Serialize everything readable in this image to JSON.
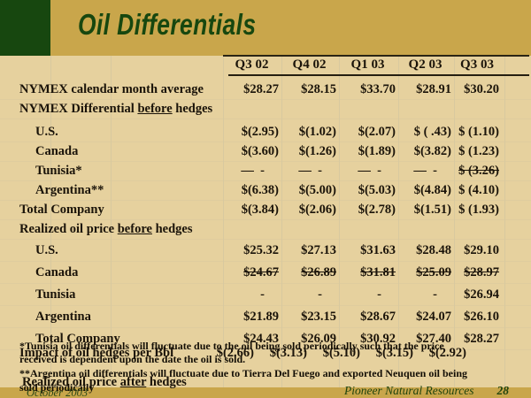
{
  "title": "Oil Differentials",
  "colors": {
    "gold": "#C9A64B",
    "dark_green": "#17470F",
    "table_background": "#E6D19E",
    "text": "#1A1309"
  },
  "table": {
    "columns": [
      "Q3 02",
      "Q4 02",
      "Q1 03",
      "Q2 03",
      "Q3 03"
    ],
    "rows": [
      {
        "label": "NYMEX calendar month average",
        "style": "plain",
        "values": [
          "$28.27",
          "$28.15",
          "$33.70",
          "$28.91",
          "$30.20"
        ]
      },
      {
        "parts": {
          "pre": "NYMEX Differential ",
          "u": "before",
          "post": " hedges"
        },
        "style": "section"
      },
      {
        "label": "U.S.",
        "style": "indent gap",
        "values": [
          "$(2.95)",
          "$(1.02)",
          "$(2.07)",
          "$ ( .43)",
          "$ (1.10)"
        ]
      },
      {
        "label": "Canada",
        "style": "indent",
        "values": [
          "$(3.60)",
          "$(1.26)",
          "$(1.89)",
          "$(3.82)",
          "$ (1.23)"
        ]
      },
      {
        "label": "Tunisia*",
        "style": "indent",
        "strike_last": true,
        "values": [
          "—  -",
          "—  -",
          "—  -",
          "—  -",
          "$ (3.26)"
        ]
      },
      {
        "label": "Argentina**",
        "style": "indent",
        "values": [
          "$(6.38)",
          "$(5.00)",
          "$(5.03)",
          "$(4.84)",
          "$ (4.10)"
        ]
      },
      {
        "label": "Total Company",
        "style": "plain",
        "values": [
          "$(3.84)",
          "$(2.06)",
          "$(2.78)",
          "$(1.51)",
          "$ (1.93)"
        ]
      },
      {
        "parts": {
          "pre": "Realized oil price ",
          "u": "before",
          "post": " hedges"
        },
        "style": "section"
      },
      {
        "label": "U.S.",
        "style": "indent tall",
        "values": [
          "$25.32",
          "$27.13",
          "$31.63",
          "$28.48",
          "$29.10"
        ]
      },
      {
        "label": "Canada",
        "style": "indent tall",
        "strike": true,
        "values": [
          "$24.67",
          "$26.89",
          "$31.81",
          "$25.09",
          "$28.97"
        ]
      },
      {
        "label": "Tunisia",
        "style": "indent tall",
        "values": [
          "-",
          "-",
          "-",
          "-",
          "$26.94"
        ]
      },
      {
        "label": "Argentina",
        "style": "indent tall",
        "values": [
          "$21.89",
          "$23.15",
          "$28.67",
          "$24.07",
          "$26.10"
        ]
      },
      {
        "label": "Total Company",
        "style": "indent tall",
        "values": [
          "$24.43",
          "$26.09",
          "$30.92",
          "$27.40",
          "$28.27"
        ]
      }
    ]
  },
  "notes": {
    "tunisia_1": "*Tunisia oil differentials will fluctuate due to the oil being sold periodically such that the price",
    "tunisia_2": "received is dependent upon the date the oil is sold.",
    "argentina_1": "**Argentina oil differentials will fluctuate due to Tierra Del Fuego and exported Neuquen oil being",
    "argentina_2": "sold periodically",
    "impact_label": "Impact of oil hedges per Bbl",
    "impact_values": [
      "$(2.66)",
      "$(3.13)",
      "$(5.10)",
      "$(3.15)",
      "$(2.92)"
    ],
    "after_row": {
      "pre": "Realized oil price ",
      "u": "after",
      "post": " hedges"
    }
  },
  "footer": {
    "date": "October 2003",
    "company": "Pioneer Natural Resources",
    "page": "28"
  }
}
